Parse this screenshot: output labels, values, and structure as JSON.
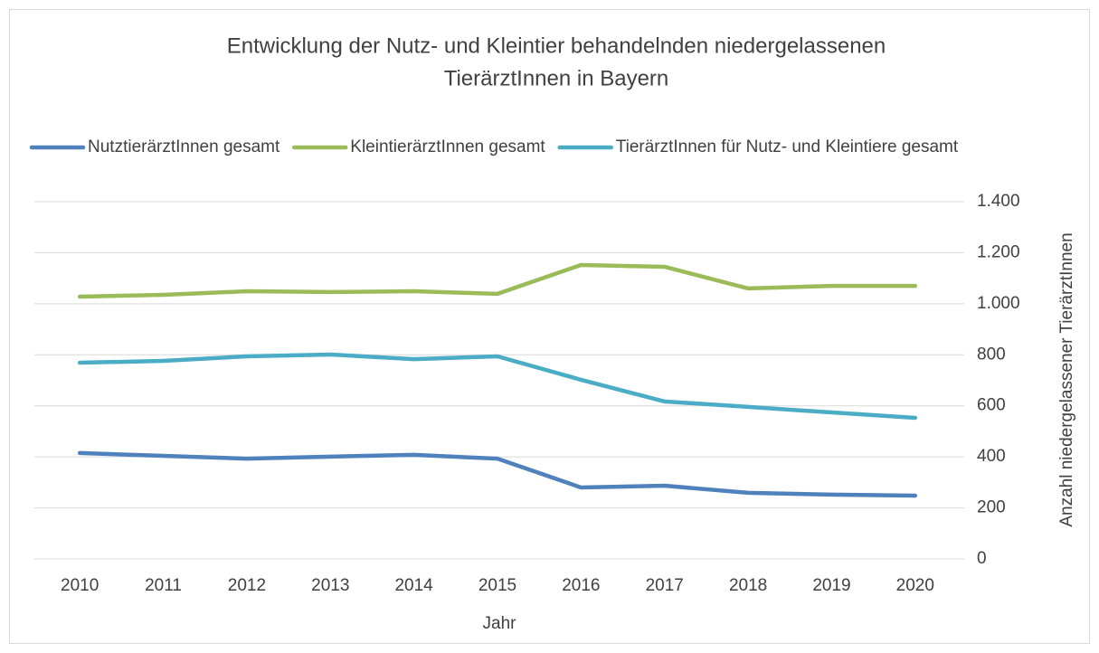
{
  "chart_data": {
    "type": "line",
    "title": [
      "Entwicklung der Nutz- und Kleintier behandelnden niedergelassenen",
      "TierärztInnen in Bayern"
    ],
    "x_label": "Jahr",
    "y_label": "Anzahl niedergelassener TierärztInnen",
    "categories": [
      "2010",
      "2011",
      "2012",
      "2013",
      "2014",
      "2015",
      "2016",
      "2017",
      "2018",
      "2019",
      "2020"
    ],
    "series": [
      {
        "name": "NutztierärztInnen gesamt",
        "color": "#4f81bd",
        "values": [
          415,
          404,
          393,
          401,
          408,
          393,
          280,
          287,
          259,
          252,
          248
        ]
      },
      {
        "name": "KleintierärztInnen gesamt",
        "color": "#9bbb59",
        "values": [
          1028,
          1035,
          1049,
          1046,
          1049,
          1039,
          1152,
          1145,
          1060,
          1070,
          1070
        ]
      },
      {
        "name": "TierärztInnen für Nutz- und Kleintiere gesamt",
        "color": "#4bacc6",
        "values": [
          769,
          776,
          794,
          801,
          783,
          794,
          702,
          617,
          596,
          574,
          553
        ]
      }
    ],
    "ylim": [
      0,
      1400
    ],
    "yticks": [
      0,
      200,
      400,
      600,
      800,
      {
        "value": 1000,
        "label": "1.000"
      },
      {
        "value": 1200,
        "label": "1.200"
      },
      {
        "value": 1400,
        "label": "1.400"
      }
    ],
    "grid": true,
    "y_axis_side": "right",
    "legend": "top"
  }
}
